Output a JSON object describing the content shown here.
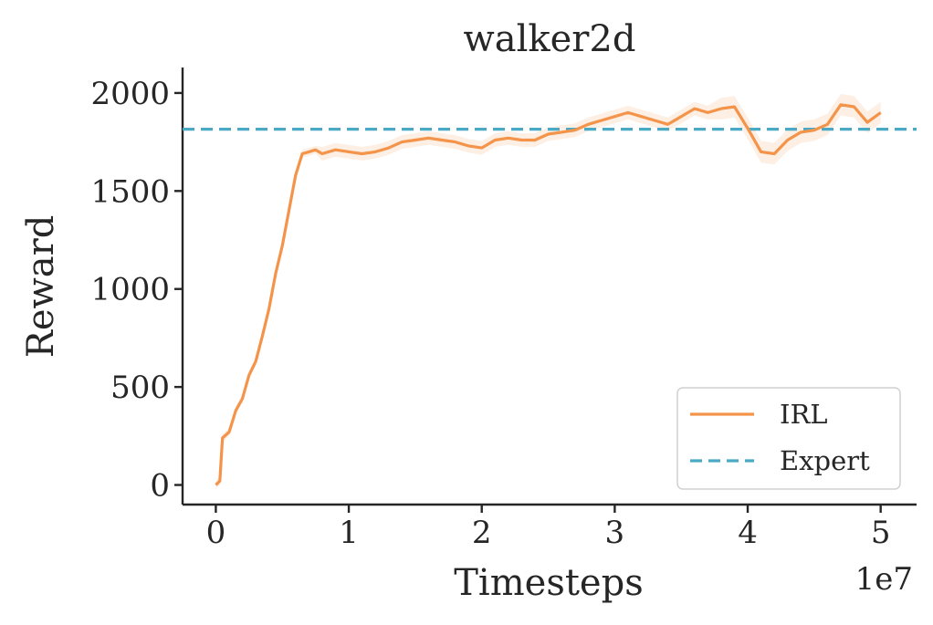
{
  "chart_data": {
    "type": "line",
    "title": "walker2d",
    "xlabel": "Timesteps",
    "ylabel": "Reward",
    "x_offset_label": "1e7",
    "xlim": [
      -0.25,
      5.27
    ],
    "ylim": [
      -100,
      2130
    ],
    "x_ticks": [
      0,
      1,
      2,
      3,
      4,
      5
    ],
    "x_tick_labels": [
      "0",
      "1",
      "2",
      "3",
      "4",
      "5"
    ],
    "y_ticks": [
      0,
      500,
      1000,
      1500,
      2000
    ],
    "y_tick_labels": [
      "0",
      "500",
      "1000",
      "1500",
      "2000"
    ],
    "grid": false,
    "legend_position": "bottom-right",
    "series": [
      {
        "name": "IRL",
        "style": "solid",
        "color": "#f4944a",
        "x": [
          0,
          0.03,
          0.05,
          0.1,
          0.15,
          0.2,
          0.25,
          0.3,
          0.35,
          0.4,
          0.45,
          0.5,
          0.55,
          0.6,
          0.65,
          0.7,
          0.75,
          0.8,
          0.9,
          1.0,
          1.1,
          1.2,
          1.3,
          1.4,
          1.5,
          1.6,
          1.7,
          1.8,
          1.9,
          2.0,
          2.1,
          2.2,
          2.3,
          2.4,
          2.5,
          2.6,
          2.7,
          2.8,
          2.9,
          3.0,
          3.1,
          3.2,
          3.3,
          3.4,
          3.5,
          3.6,
          3.7,
          3.8,
          3.9,
          4.0,
          4.1,
          4.2,
          4.3,
          4.4,
          4.5,
          4.6,
          4.7,
          4.8,
          4.9,
          5.0
        ],
        "y": [
          0,
          20,
          240,
          270,
          380,
          440,
          560,
          630,
          760,
          900,
          1080,
          1220,
          1400,
          1580,
          1690,
          1700,
          1710,
          1690,
          1710,
          1700,
          1690,
          1700,
          1720,
          1750,
          1760,
          1770,
          1760,
          1750,
          1730,
          1720,
          1760,
          1770,
          1760,
          1760,
          1790,
          1800,
          1810,
          1840,
          1860,
          1880,
          1900,
          1880,
          1860,
          1840,
          1880,
          1920,
          1900,
          1920,
          1930,
          1820,
          1700,
          1690,
          1760,
          1800,
          1810,
          1840,
          1940,
          1930,
          1850,
          1900
        ]
      },
      {
        "name": "Expert",
        "style": "dashed",
        "color": "#4aa9c4",
        "y_constant": 1815
      }
    ]
  }
}
